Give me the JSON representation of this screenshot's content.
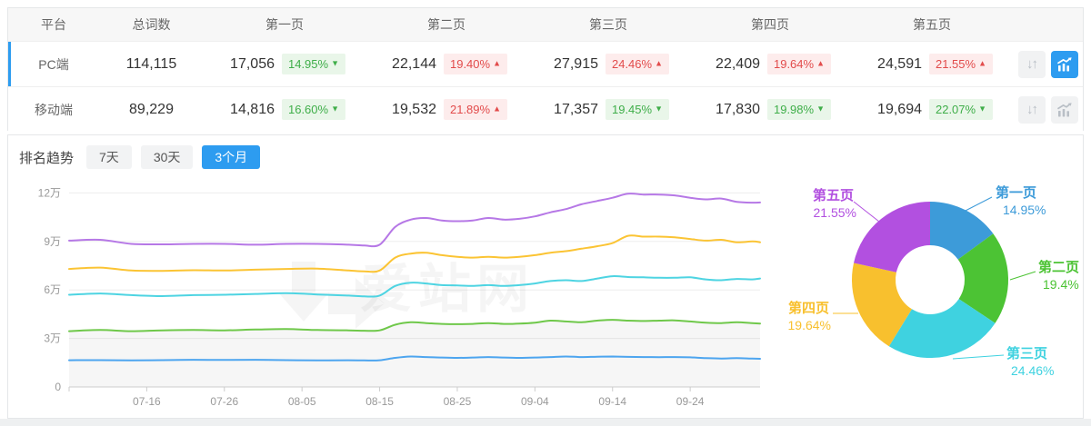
{
  "table": {
    "headers": {
      "platform": "平台",
      "total": "总词数",
      "pages": [
        "第一页",
        "第二页",
        "第三页",
        "第四页",
        "第五页"
      ]
    },
    "rows": [
      {
        "platform": "PC端",
        "total": "114,115",
        "active": true,
        "pages": [
          {
            "value": "17,056",
            "change": "14.95%",
            "dir": "down"
          },
          {
            "value": "22,144",
            "change": "19.40%",
            "dir": "up"
          },
          {
            "value": "27,915",
            "change": "24.46%",
            "dir": "up"
          },
          {
            "value": "22,409",
            "change": "19.64%",
            "dir": "up"
          },
          {
            "value": "24,591",
            "change": "21.55%",
            "dir": "up"
          }
        ]
      },
      {
        "platform": "移动端",
        "total": "89,229",
        "active": false,
        "pages": [
          {
            "value": "14,816",
            "change": "16.60%",
            "dir": "down"
          },
          {
            "value": "19,532",
            "change": "21.89%",
            "dir": "up"
          },
          {
            "value": "17,357",
            "change": "19.45%",
            "dir": "down"
          },
          {
            "value": "17,830",
            "change": "19.98%",
            "dir": "down"
          },
          {
            "value": "19,694",
            "change": "22.07%",
            "dir": "down"
          }
        ]
      }
    ]
  },
  "trend": {
    "label": "排名趋势",
    "tabs": [
      {
        "label": "7天",
        "active": false
      },
      {
        "label": "30天",
        "active": false
      },
      {
        "label": "3个月",
        "active": true
      }
    ]
  },
  "watermark": "爱站网",
  "colors": {
    "accent": "#2d9cf0",
    "up_red": "#e24b4b",
    "up_red_bg": "#fdecec",
    "down_green": "#3fae49",
    "down_green_bg": "#e9f6e9"
  },
  "chart_data": [
    {
      "type": "line",
      "stacked": true,
      "title": "排名趋势 (3个月)",
      "note": "cumulative stacked keyword counts, unit 万 (10k); PC端 platform",
      "xlabel": "",
      "ylabel": "",
      "unit": "万",
      "ylim": [
        0,
        13
      ],
      "grid": true,
      "y_ticks": [
        "0",
        "3万",
        "6万",
        "9万",
        "12万"
      ],
      "x_ticks": [
        "07-16",
        "07-26",
        "08-05",
        "08-15",
        "08-25",
        "09-04",
        "09-14",
        "09-24"
      ],
      "x_tick_days": [
        10,
        20,
        30,
        40,
        50,
        60,
        70,
        80
      ],
      "x_days": [
        0,
        4,
        8,
        12,
        16,
        20,
        24,
        28,
        32,
        36,
        38,
        40,
        42,
        44,
        46,
        48,
        50,
        52,
        54,
        56,
        58,
        60,
        62,
        64,
        66,
        68,
        70,
        72,
        74,
        76,
        78,
        80,
        82,
        84,
        86,
        88,
        89
      ],
      "series": [
        {
          "name": "第一页",
          "color": "#4da5ef",
          "values": [
            1.65,
            1.66,
            1.64,
            1.66,
            1.68,
            1.67,
            1.68,
            1.66,
            1.64,
            1.65,
            1.64,
            1.65,
            1.8,
            1.88,
            1.85,
            1.82,
            1.8,
            1.82,
            1.85,
            1.82,
            1.8,
            1.82,
            1.85,
            1.88,
            1.85,
            1.87,
            1.88,
            1.86,
            1.85,
            1.84,
            1.85,
            1.83,
            1.78,
            1.76,
            1.78,
            1.75,
            1.74
          ]
        },
        {
          "name": "第二页",
          "color": "#6fc84a",
          "values": [
            3.45,
            3.52,
            3.45,
            3.5,
            3.52,
            3.5,
            3.55,
            3.58,
            3.52,
            3.5,
            3.48,
            3.5,
            3.85,
            4.0,
            3.95,
            3.9,
            3.88,
            3.9,
            3.95,
            3.9,
            3.92,
            3.98,
            4.1,
            4.05,
            4.0,
            4.1,
            4.15,
            4.1,
            4.08,
            4.1,
            4.12,
            4.05,
            3.98,
            3.95,
            4.0,
            3.95,
            3.92
          ]
        },
        {
          "name": "第三页",
          "color": "#4ed4e2",
          "values": [
            5.7,
            5.78,
            5.68,
            5.62,
            5.68,
            5.7,
            5.75,
            5.8,
            5.72,
            5.65,
            5.6,
            5.65,
            6.25,
            6.45,
            6.4,
            6.3,
            6.28,
            6.25,
            6.3,
            6.25,
            6.3,
            6.4,
            6.55,
            6.6,
            6.55,
            6.7,
            6.85,
            6.8,
            6.78,
            6.75,
            6.75,
            6.78,
            6.65,
            6.6,
            6.68,
            6.65,
            6.71
          ]
        },
        {
          "name": "第四页",
          "color": "#fbc434",
          "values": [
            7.3,
            7.38,
            7.2,
            7.18,
            7.22,
            7.2,
            7.25,
            7.3,
            7.32,
            7.2,
            7.15,
            7.2,
            8.0,
            8.25,
            8.3,
            8.15,
            8.05,
            8.0,
            8.05,
            8.0,
            8.05,
            8.15,
            8.3,
            8.4,
            8.55,
            8.7,
            8.9,
            9.35,
            9.3,
            9.3,
            9.25,
            9.15,
            9.05,
            9.1,
            8.95,
            9.0,
            8.95
          ]
        },
        {
          "name": "第五页",
          "color": "#b678e6",
          "values": [
            9.05,
            9.1,
            8.85,
            8.82,
            8.85,
            8.85,
            8.8,
            8.85,
            8.85,
            8.8,
            8.75,
            8.8,
            9.9,
            10.35,
            10.45,
            10.3,
            10.25,
            10.3,
            10.45,
            10.35,
            10.4,
            10.55,
            10.8,
            11.0,
            11.3,
            11.5,
            11.7,
            11.95,
            11.9,
            11.9,
            11.85,
            11.7,
            11.6,
            11.65,
            11.45,
            11.4,
            11.41
          ]
        }
      ]
    },
    {
      "type": "pie",
      "donut": true,
      "title": "",
      "slices": [
        {
          "label": "第一页",
          "pct": 14.95,
          "display": "14.95%",
          "color": "#3d9bd9"
        },
        {
          "label": "第二页",
          "pct": 19.4,
          "display": "19.4%",
          "color": "#4cc334"
        },
        {
          "label": "第三页",
          "pct": 24.46,
          "display": "24.46%",
          "color": "#3fd2e0"
        },
        {
          "label": "第四页",
          "pct": 19.64,
          "display": "19.64%",
          "color": "#f8c02e"
        },
        {
          "label": "第五页",
          "pct": 21.55,
          "display": "21.55%",
          "color": "#b250e0"
        }
      ]
    }
  ]
}
